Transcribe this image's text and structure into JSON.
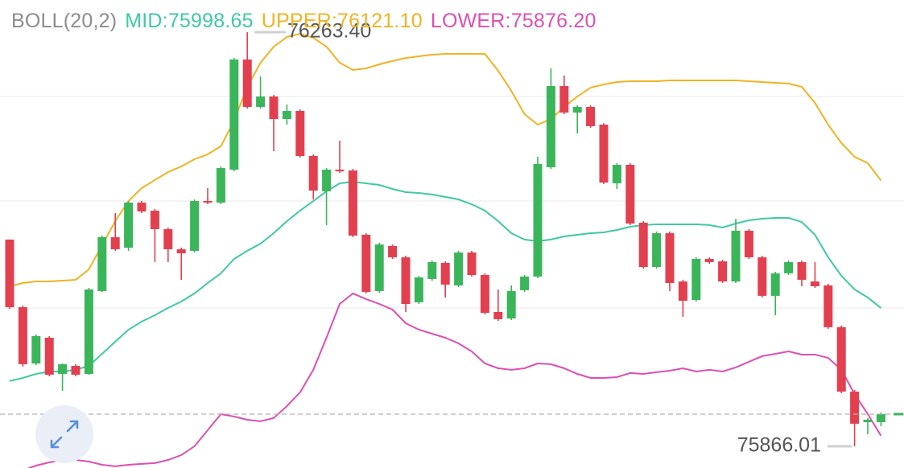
{
  "chart_data": {
    "type": "candlestick",
    "ylim": [
      75845.2,
      76294.3
    ],
    "grid_lines": [
      76201.7,
      76101.4,
      75998.8
    ],
    "up_color": "#3bb55a",
    "down_color": "#e2404f",
    "open": [
      76064.4,
      75999.5,
      75945.5,
      75970.2,
      75935.5,
      75943.2,
      75935.5,
      76015.0,
      76066.7,
      76056.6,
      76099.9,
      76092.1,
      76074.4,
      76055.1,
      76053.6,
      76101.4,
      76099.9,
      76131.5,
      76237.2,
      76191.7,
      76201.7,
      76180.1,
      76187.8,
      76144.6,
      76110.7,
      76131.5,
      76130.7,
      76069.0,
      76015.0,
      76058.2,
      76047.4,
      76004.2,
      76026.6,
      76042.0,
      76020.4,
      76052.0,
      76030.4,
      75994.9,
      75988.7,
      76015.8,
      76028.9,
      76133.8,
      76211.7,
      76186.3,
      76191.7,
      76174.7,
      76118.4,
      76136.1,
      76080.6,
      76038.1,
      76070.5,
      76024.2,
      76006.5,
      76045.8,
      76043.5,
      76024.2,
      76072.9,
      76047.4,
      76010.4,
      76032.0,
      76042.8,
      76024.2,
      76020.4,
      75980.3,
      75918.5,
      75889.2,
      75889.2
    ],
    "high": [
      76064.4,
      76001.1,
      75973.3,
      75971.8,
      75945.5,
      75944.8,
      76018.1,
      76068.2,
      76089.8,
      76101.4,
      76101.4,
      76093.7,
      76075.9,
      76056.6,
      76102.9,
      76113.7,
      76134.6,
      76238.7,
      76263.4,
      76221.0,
      76203.3,
      76194.0,
      76189.4,
      76146.2,
      76133.0,
      76159.3,
      76132.3,
      76070.5,
      76061.3,
      76059.7,
      76048.9,
      76029.6,
      76044.3,
      76043.5,
      76053.6,
      76053.6,
      76032.0,
      76016.5,
      76020.4,
      76030.4,
      76143.8,
      76228.7,
      76221.8,
      76193.2,
      76193.2,
      76176.2,
      76137.7,
      76137.7,
      76082.1,
      76072.1,
      76072.1,
      76025.8,
      76047.4,
      76047.4,
      76045.1,
      76084.4,
      76074.4,
      76048.9,
      76033.5,
      76044.3,
      76044.3,
      76042.8,
      76021.9,
      75981.8,
      75920.1,
      75893.1,
      75898.5
    ],
    "low": [
      75998.0,
      75942.5,
      75944.0,
      75933.2,
      75919.3,
      75933.2,
      75934.7,
      76014.2,
      76053.6,
      76053.6,
      76089.8,
      76042.8,
      76042.8,
      76025.8,
      76052.0,
      76098.3,
      76098.3,
      76129.9,
      76190.1,
      76190.1,
      76149.2,
      76174.7,
      76143.1,
      76102.9,
      76078.3,
      76128.4,
      76066.7,
      76012.7,
      76013.4,
      76045.8,
      75994.9,
      76002.6,
      76025.0,
      76008.8,
      76018.8,
      76028.9,
      75992.6,
      75986.4,
      75987.2,
      76014.2,
      76027.3,
      76132.3,
      76184.7,
      76166.2,
      76171.6,
      76117.6,
      76113.0,
      76078.3,
      76036.6,
      76036.6,
      76015.0,
      75990.3,
      76004.9,
      76041.2,
      76022.7,
      76022.7,
      76045.8,
      76008.8,
      75991.8,
      76030.4,
      76019.6,
      76018.1,
      75978.7,
      75917.0,
      75866.01,
      75877.6,
      75885.3
    ],
    "close": [
      75999.5,
      75944.8,
      75971.8,
      75934.7,
      75944.8,
      75934.7,
      76016.5,
      76066.7,
      76055.1,
      76099.9,
      76091.4,
      76074.4,
      76055.1,
      76051.2,
      76101.4,
      76099.9,
      76133.0,
      76237.2,
      76191.7,
      76201.7,
      76180.1,
      76187.8,
      76144.6,
      76111.4,
      76131.5,
      76129.9,
      76068.2,
      76014.2,
      76059.7,
      76047.4,
      76002.6,
      76028.1,
      76042.8,
      76021.2,
      76052.0,
      76030.4,
      75994.1,
      75988.0,
      76015.0,
      76028.9,
      76136.9,
      76211.7,
      76186.3,
      76191.7,
      76173.2,
      76119.1,
      76136.1,
      76079.8,
      76038.1,
      76070.5,
      76022.7,
      76005.7,
      76045.8,
      76042.8,
      76024.2,
      76072.9,
      76047.4,
      76010.4,
      76032.0,
      76042.8,
      76025.8,
      76019.6,
      75980.3,
      75918.5,
      75887.7,
      75891.5,
      75896.9
    ],
    "high_label": {
      "value": 76263.4,
      "label": "76263.40"
    },
    "low_label": 75866.01,
    "indicator": {
      "name": "BOLL(20,2)",
      "name_color": "#8c8c8c",
      "lines": [
        {
          "name": "MID:",
          "color": "#3fc9a4",
          "current": {
            "value": 75998.65,
            "label": "75998.65"
          },
          "values": [
            75928.6,
            75931.6,
            75935.5,
            75937.8,
            75937.8,
            75939.4,
            75943.2,
            75954.8,
            75966.4,
            75977.9,
            75985.7,
            75991.8,
            75998.8,
            76004.9,
            76012.7,
            76022.7,
            76032.0,
            76045.8,
            76053.6,
            76060.5,
            76070.5,
            76082.1,
            76092.1,
            76101.4,
            76110.7,
            76118.4,
            76119.9,
            76118.4,
            76116.8,
            76113.0,
            76109.9,
            76109.1,
            76107.6,
            76105.3,
            76102.9,
            76098.3,
            76092.1,
            76082.1,
            76070.5,
            76064.4,
            76062.8,
            76064.4,
            76067.4,
            76069.0,
            76070.5,
            76071.3,
            76073.6,
            76076.7,
            76078.3,
            76079.0,
            76079.0,
            76079.0,
            76079.0,
            76078.3,
            76075.9,
            76079.8,
            76082.9,
            76084.4,
            76085.2,
            76085.2,
            76081.3,
            76069.0,
            76047.4,
            76029.6,
            76016.5,
            76008.8,
            75998.65
          ]
        },
        {
          "name": "UPPER:",
          "color": "#f0b323",
          "current": {
            "value": 76121.1,
            "label": "76121.10"
          },
          "values": [
            76019.6,
            76022.7,
            76024.2,
            76024.2,
            76025.0,
            76025.8,
            76035.8,
            76059.0,
            76082.1,
            76101.4,
            76113.7,
            76121.5,
            76129.2,
            76134.6,
            76141.5,
            76146.2,
            76153.9,
            76178.6,
            76211.0,
            76234.1,
            76249.5,
            76258.8,
            76261.9,
            76258.0,
            76249.5,
            76234.1,
            76227.2,
            76228.7,
            76232.6,
            76235.7,
            76238.7,
            76240.3,
            76241.8,
            76242.6,
            76242.6,
            76242.6,
            76242.6,
            76226.4,
            76207.1,
            76184.7,
            76174.7,
            76180.1,
            76191.7,
            76201.7,
            76210.2,
            76213.3,
            76215.6,
            76216.4,
            76216.4,
            76216.4,
            76217.1,
            76217.1,
            76217.1,
            76217.1,
            76217.1,
            76217.1,
            76216.4,
            76215.6,
            76214.8,
            76214.1,
            76211.0,
            76195.5,
            76174.7,
            76157.0,
            76143.8,
            76137.7,
            76121.1
          ]
        },
        {
          "name": "LOWER:",
          "color": "#dd4fb2",
          "current": {
            "value": 75876.2,
            "label": "75876.20"
          },
          "values": [
            75839.1,
            75842.9,
            75847.5,
            75850.6,
            75852.9,
            75852.9,
            75851.4,
            75848.3,
            75846.8,
            75848.3,
            75849.1,
            75849.9,
            75852.9,
            75857.6,
            75866.1,
            75881.5,
            75896.9,
            75894.6,
            75891.5,
            75890.0,
            75893.1,
            75904.6,
            75917.8,
            75939.4,
            75970.2,
            76002.6,
            76012.7,
            76007.3,
            76002.6,
            75997.2,
            75984.1,
            75977.9,
            75974.1,
            75970.2,
            75964.8,
            75957.1,
            75945.5,
            75940.9,
            75939.4,
            75940.9,
            75945.5,
            75944.8,
            75940.9,
            75935.5,
            75931.6,
            75931.6,
            75932.4,
            75936.3,
            75935.5,
            75937.1,
            75938.6,
            75940.9,
            75937.8,
            75939.4,
            75937.8,
            75941.7,
            75947.1,
            75952.5,
            75954.8,
            75957.1,
            75954.0,
            75954.0,
            75950.9,
            75939.4,
            75916.2,
            75896.9,
            75876.2
          ]
        }
      ]
    }
  }
}
